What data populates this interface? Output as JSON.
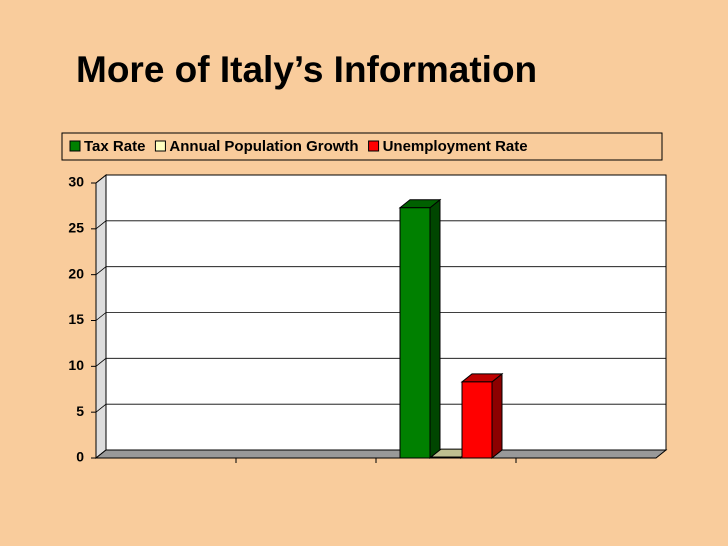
{
  "chart_data": {
    "type": "bar3d",
    "title": "More of Italy’s Information",
    "categories": [
      null,
      null,
      null,
      null
    ],
    "series": [
      {
        "name": "Tax Rate",
        "color": "#008000",
        "values": [
          null,
          null,
          27.3,
          null
        ]
      },
      {
        "name": "Annual Population Growth",
        "color": "#ffffc0",
        "values": [
          null,
          null,
          0.1,
          null
        ]
      },
      {
        "name": "Unemployment Rate",
        "color": "#ff0000",
        "values": [
          null,
          null,
          8.3,
          null
        ]
      }
    ],
    "ylim": [
      0,
      30
    ],
    "yticks": [
      0,
      5,
      10,
      15,
      20,
      25,
      30
    ],
    "grid": true,
    "legend": "top"
  }
}
